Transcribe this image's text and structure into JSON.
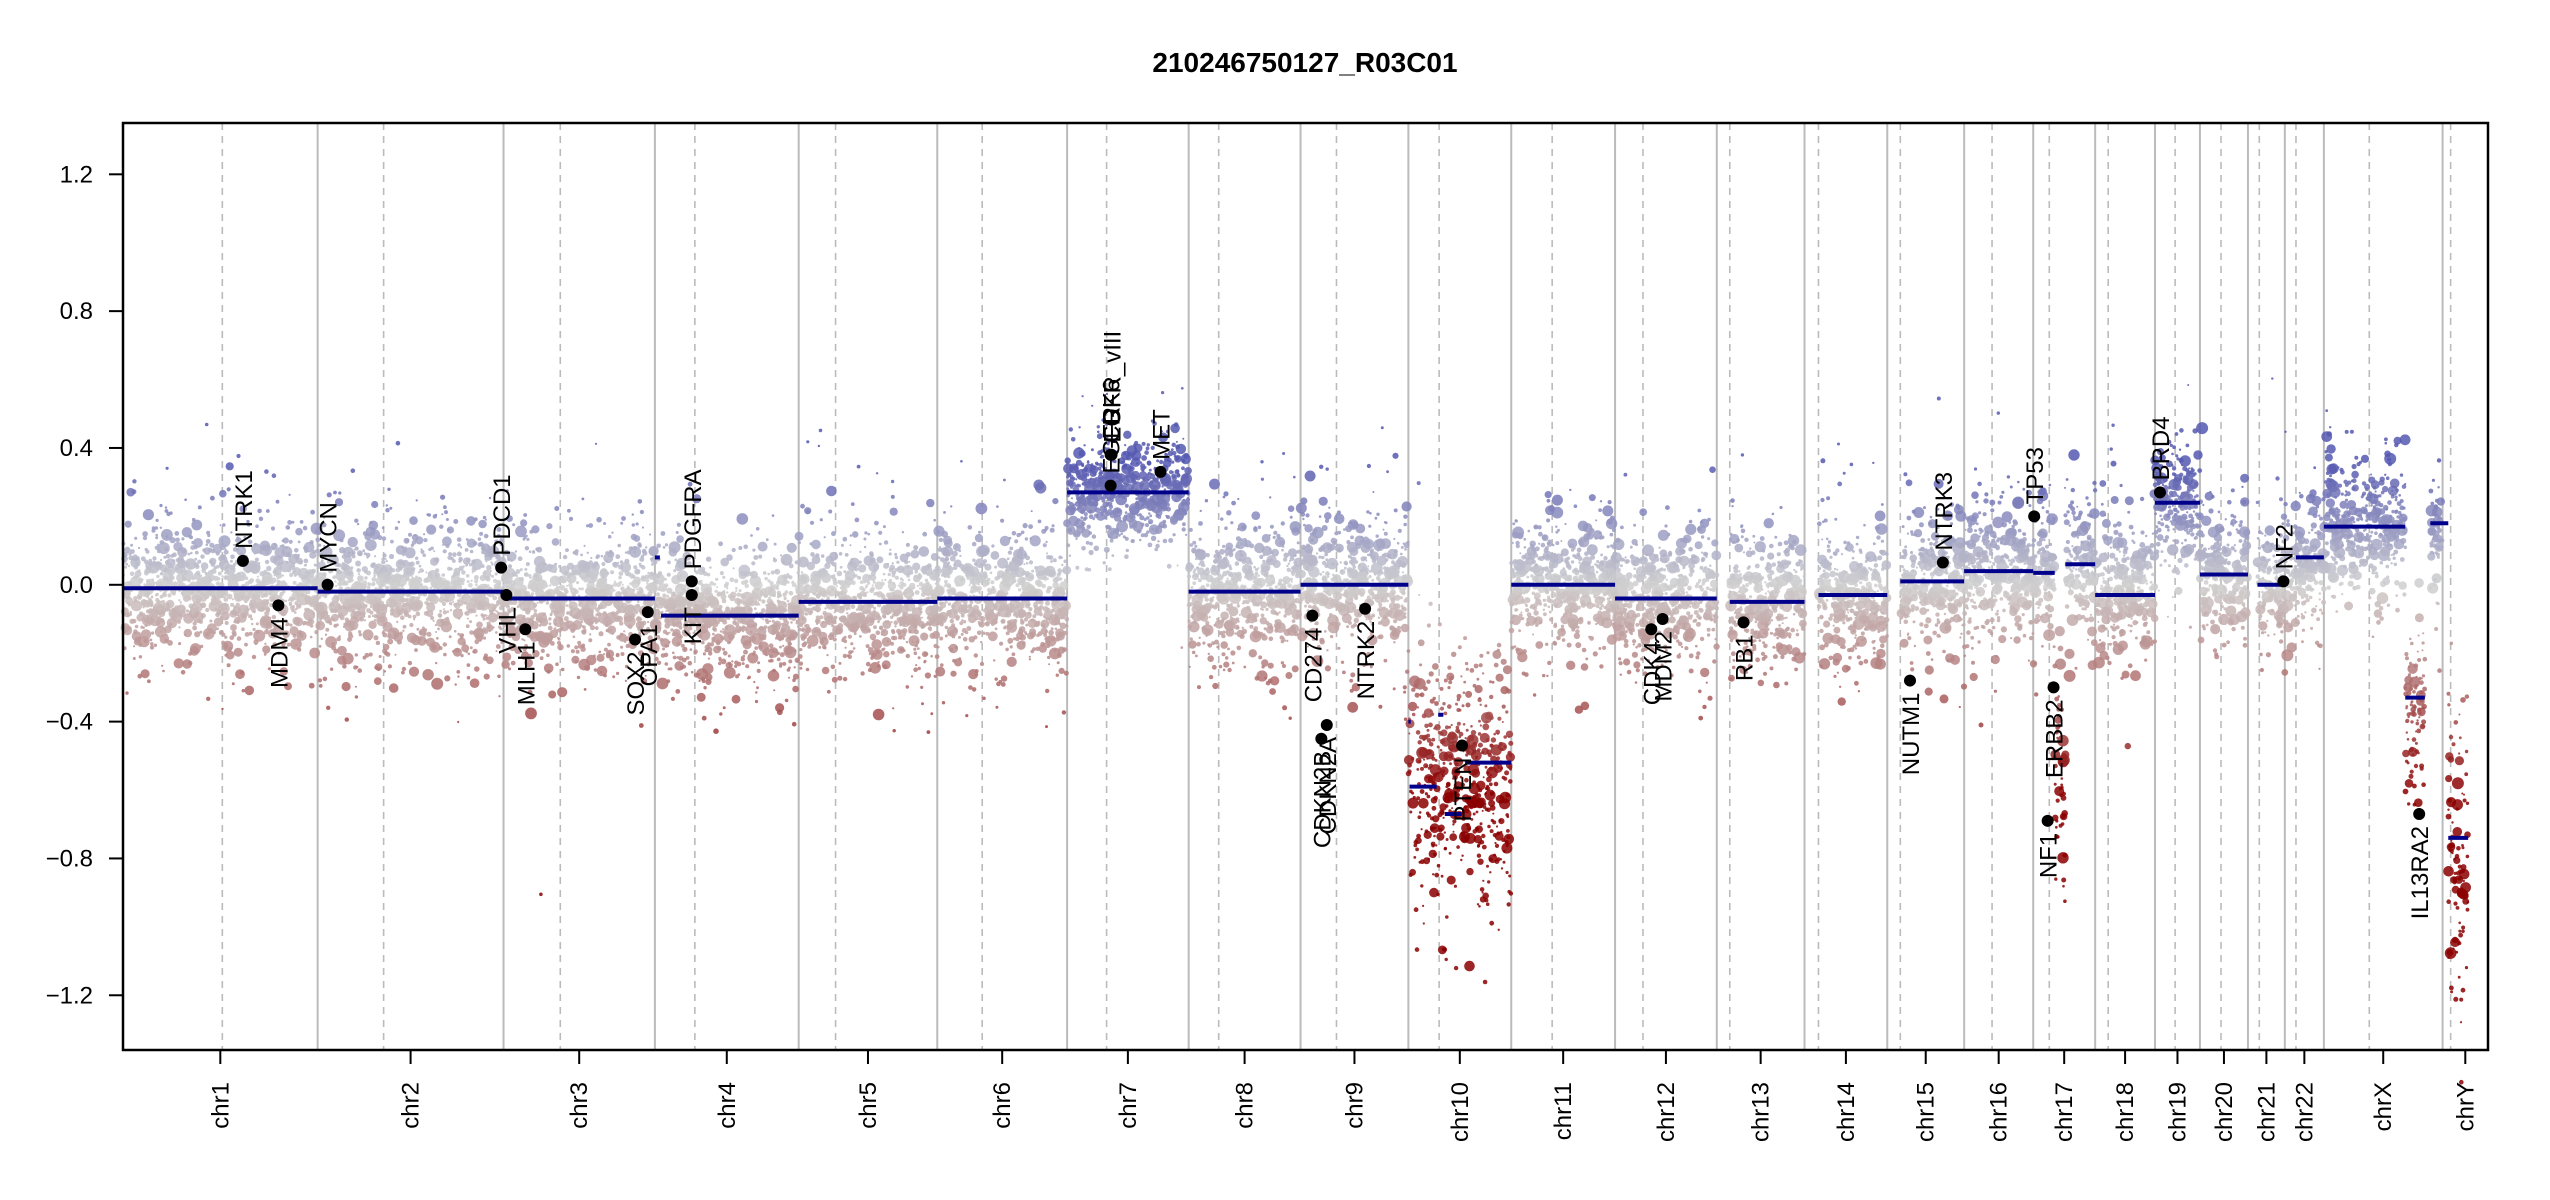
{
  "chart_data": {
    "type": "scatter",
    "title": "210246750127_R03C01",
    "xlabel": "",
    "ylabel": "",
    "ylim": [
      -1.36,
      1.35
    ],
    "y_ticks": [
      1.2,
      0.8,
      0.4,
      0.0,
      -0.4,
      -0.8,
      -1.2
    ],
    "y_tick_labels": [
      "1.2",
      "0.8",
      "0.4",
      "0.0",
      "−0.4",
      "−0.8",
      "−1.2"
    ],
    "grid": false,
    "legend": "none",
    "colors": {
      "gain": "#5558b0",
      "neutral": "#d0d0d0",
      "loss": "#8b0000",
      "segment": "#00008b",
      "gene_point": "#000000",
      "chrom_boundary": "#bbbbbb",
      "centromere": "#bbbbbb"
    },
    "chromosomes": [
      {
        "name": "chr1",
        "start": 0.0,
        "end": 0.0823,
        "centromere": 0.042
      },
      {
        "name": "chr2",
        "start": 0.0823,
        "end": 0.1609,
        "centromere": 0.1102
      },
      {
        "name": "chr3",
        "start": 0.1609,
        "end": 0.2249,
        "centromere": 0.1849
      },
      {
        "name": "chr4",
        "start": 0.2249,
        "end": 0.2857,
        "centromere": 0.2418
      },
      {
        "name": "chr5",
        "start": 0.2857,
        "end": 0.3443,
        "centromere": 0.3013
      },
      {
        "name": "chr6",
        "start": 0.3443,
        "end": 0.3992,
        "centromere": 0.3633
      },
      {
        "name": "chr7",
        "start": 0.3992,
        "end": 0.4506,
        "centromere": 0.4159
      },
      {
        "name": "chr8",
        "start": 0.4506,
        "end": 0.4979,
        "centromere": 0.4633
      },
      {
        "name": "chr9",
        "start": 0.4979,
        "end": 0.5435,
        "centromere": 0.5131
      },
      {
        "name": "chr10",
        "start": 0.5435,
        "end": 0.587,
        "centromere": 0.5565
      },
      {
        "name": "chr11",
        "start": 0.587,
        "end": 0.6309,
        "centromere": 0.6043
      },
      {
        "name": "chr12",
        "start": 0.6309,
        "end": 0.6739,
        "centromere": 0.6427
      },
      {
        "name": "chr13",
        "start": 0.6739,
        "end": 0.711,
        "centromere": 0.6794
      },
      {
        "name": "chr14",
        "start": 0.711,
        "end": 0.746,
        "centromere": 0.7169
      },
      {
        "name": "chr15",
        "start": 0.746,
        "end": 0.7785,
        "centromere": 0.7515
      },
      {
        "name": "chr16",
        "start": 0.7785,
        "end": 0.8077,
        "centromere": 0.7903
      },
      {
        "name": "chr17",
        "start": 0.8077,
        "end": 0.8339,
        "centromere": 0.8145
      },
      {
        "name": "chr18",
        "start": 0.8339,
        "end": 0.8592,
        "centromere": 0.8394
      },
      {
        "name": "chr19",
        "start": 0.8592,
        "end": 0.8782,
        "centromere": 0.8677
      },
      {
        "name": "chr20",
        "start": 0.8782,
        "end": 0.8985,
        "centromere": 0.8871
      },
      {
        "name": "chr21",
        "start": 0.8985,
        "end": 0.9141,
        "centromere": 0.9033
      },
      {
        "name": "chr22",
        "start": 0.9141,
        "end": 0.9306,
        "centromere": 0.9188
      },
      {
        "name": "chrX",
        "start": 0.9306,
        "end": 0.9808,
        "centromere": 0.9498
      },
      {
        "name": "chrY",
        "start": 0.9808,
        "end": 1.0,
        "centromere": 0.9842
      }
    ],
    "segments": [
      {
        "chrom": "chr1",
        "start": 0.0,
        "end": 0.0823,
        "value": -0.01
      },
      {
        "chrom": "chr2",
        "start": 0.0823,
        "end": 0.1609,
        "value": -0.02
      },
      {
        "chrom": "chr3",
        "start": 0.1609,
        "end": 0.2249,
        "value": -0.04
      },
      {
        "chrom": "chr4",
        "start": 0.2249,
        "end": 0.227,
        "value": 0.08
      },
      {
        "chrom": "chr4",
        "start": 0.2275,
        "end": 0.2857,
        "value": -0.09
      },
      {
        "chrom": "chr5",
        "start": 0.2857,
        "end": 0.3443,
        "value": -0.05
      },
      {
        "chrom": "chr6",
        "start": 0.3443,
        "end": 0.3992,
        "value": -0.04
      },
      {
        "chrom": "chr7",
        "start": 0.3992,
        "end": 0.4506,
        "value": 0.27
      },
      {
        "chrom": "chr8",
        "start": 0.4506,
        "end": 0.4979,
        "value": -0.02
      },
      {
        "chrom": "chr9",
        "start": 0.4979,
        "end": 0.5435,
        "value": 0.0
      },
      {
        "chrom": "chr10",
        "start": 0.5435,
        "end": 0.5445,
        "value": -0.4
      },
      {
        "chrom": "chr10",
        "start": 0.544,
        "end": 0.5555,
        "value": -0.59
      },
      {
        "chrom": "chr10",
        "start": 0.5561,
        "end": 0.5583,
        "value": -0.38
      },
      {
        "chrom": "chr10",
        "start": 0.5589,
        "end": 0.5659,
        "value": -0.67
      },
      {
        "chrom": "chr10",
        "start": 0.5675,
        "end": 0.587,
        "value": -0.52
      },
      {
        "chrom": "chr11",
        "start": 0.587,
        "end": 0.6309,
        "value": 0.0
      },
      {
        "chrom": "chr12",
        "start": 0.6309,
        "end": 0.6739,
        "value": -0.04
      },
      {
        "chrom": "chr13",
        "start": 0.6794,
        "end": 0.711,
        "value": -0.05
      },
      {
        "chrom": "chr14",
        "start": 0.7169,
        "end": 0.746,
        "value": -0.03
      },
      {
        "chrom": "chr15",
        "start": 0.7515,
        "end": 0.7785,
        "value": 0.01
      },
      {
        "chrom": "chr16",
        "start": 0.7785,
        "end": 0.8077,
        "value": 0.04
      },
      {
        "chrom": "chr17",
        "start": 0.8077,
        "end": 0.8168,
        "value": 0.035
      },
      {
        "chrom": "chr17",
        "start": 0.8213,
        "end": 0.8339,
        "value": 0.06
      },
      {
        "chrom": "chr18",
        "start": 0.8339,
        "end": 0.8592,
        "value": -0.03
      },
      {
        "chrom": "chr19",
        "start": 0.8592,
        "end": 0.8782,
        "value": 0.24
      },
      {
        "chrom": "chr20",
        "start": 0.8782,
        "end": 0.8985,
        "value": 0.03
      },
      {
        "chrom": "chr21",
        "start": 0.9025,
        "end": 0.9141,
        "value": 0.0
      },
      {
        "chrom": "chr22",
        "start": 0.9188,
        "end": 0.9306,
        "value": 0.08
      },
      {
        "chrom": "chrX",
        "start": 0.9306,
        "end": 0.965,
        "value": 0.17
      },
      {
        "chrom": "chrX",
        "start": 0.965,
        "end": 0.9733,
        "value": -0.33
      },
      {
        "chrom": "chrX",
        "start": 0.9756,
        "end": 0.9832,
        "value": 0.18
      },
      {
        "chrom": "chrY",
        "start": 0.9832,
        "end": 0.9916,
        "value": -0.74
      }
    ],
    "probe_clusters": [
      {
        "chrom": "chr1",
        "start": 0.0,
        "end": 0.0823,
        "mean": -0.01,
        "sd": 0.09
      },
      {
        "chrom": "chr2",
        "start": 0.0823,
        "end": 0.1609,
        "mean": -0.02,
        "sd": 0.09
      },
      {
        "chrom": "chr3",
        "start": 0.1609,
        "end": 0.2249,
        "mean": -0.04,
        "sd": 0.09
      },
      {
        "chrom": "chr4",
        "start": 0.2249,
        "end": 0.2857,
        "mean": -0.08,
        "sd": 0.09
      },
      {
        "chrom": "chr5",
        "start": 0.2857,
        "end": 0.3443,
        "mean": -0.05,
        "sd": 0.09
      },
      {
        "chrom": "chr6",
        "start": 0.3443,
        "end": 0.3992,
        "mean": -0.04,
        "sd": 0.09
      },
      {
        "chrom": "chr7",
        "start": 0.3992,
        "end": 0.4506,
        "mean": 0.27,
        "sd": 0.07
      },
      {
        "chrom": "chr8",
        "start": 0.4506,
        "end": 0.4979,
        "mean": -0.02,
        "sd": 0.09
      },
      {
        "chrom": "chr9",
        "start": 0.4979,
        "end": 0.5435,
        "mean": 0.0,
        "sd": 0.09
      },
      {
        "chrom": "chr10",
        "start": 0.5435,
        "end": 0.587,
        "mean": -0.57,
        "sd": 0.17
      },
      {
        "chrom": "chr11",
        "start": 0.587,
        "end": 0.6309,
        "mean": 0.0,
        "sd": 0.09
      },
      {
        "chrom": "chr12",
        "start": 0.6309,
        "end": 0.6739,
        "mean": -0.04,
        "sd": 0.09
      },
      {
        "chrom": "chr13",
        "start": 0.6794,
        "end": 0.711,
        "mean": -0.05,
        "sd": 0.09
      },
      {
        "chrom": "chr14",
        "start": 0.7169,
        "end": 0.746,
        "mean": -0.03,
        "sd": 0.09
      },
      {
        "chrom": "chr15",
        "start": 0.7515,
        "end": 0.7785,
        "mean": 0.01,
        "sd": 0.09
      },
      {
        "chrom": "chr16",
        "start": 0.7785,
        "end": 0.8077,
        "mean": 0.04,
        "sd": 0.09
      },
      {
        "chrom": "chr17",
        "start": 0.8077,
        "end": 0.8168,
        "mean": 0.03,
        "sd": 0.09
      },
      {
        "chrom": "chr17",
        "start": 0.8168,
        "end": 0.8213,
        "mean": -0.55,
        "sd": 0.15
      },
      {
        "chrom": "chr17",
        "start": 0.8213,
        "end": 0.8339,
        "mean": 0.06,
        "sd": 0.09
      },
      {
        "chrom": "chr18",
        "start": 0.8339,
        "end": 0.8592,
        "mean": -0.03,
        "sd": 0.09
      },
      {
        "chrom": "chr19",
        "start": 0.8592,
        "end": 0.8782,
        "mean": 0.24,
        "sd": 0.08
      },
      {
        "chrom": "chr20",
        "start": 0.8782,
        "end": 0.8985,
        "mean": 0.03,
        "sd": 0.09
      },
      {
        "chrom": "chr21",
        "start": 0.9025,
        "end": 0.9141,
        "mean": 0.0,
        "sd": 0.09
      },
      {
        "chrom": "chr22",
        "start": 0.9141,
        "end": 0.9306,
        "mean": 0.05,
        "sd": 0.09
      },
      {
        "chrom": "chrX",
        "start": 0.9306,
        "end": 0.965,
        "mean": 0.17,
        "sd": 0.09
      },
      {
        "chrom": "chrX",
        "start": 0.965,
        "end": 0.9733,
        "mean": -0.36,
        "sd": 0.09
      },
      {
        "chrom": "chrX",
        "start": 0.9756,
        "end": 0.9808,
        "mean": 0.15,
        "sd": 0.09
      },
      {
        "chrom": "chrY",
        "start": 0.9832,
        "end": 0.9916,
        "mean": -0.8,
        "sd": 0.2
      }
    ],
    "genes": [
      {
        "name": "NTRK1",
        "pos": 0.0507,
        "value": 0.07,
        "label_side": "above"
      },
      {
        "name": "MDM4",
        "pos": 0.0657,
        "value": -0.06,
        "label_side": "below"
      },
      {
        "name": "MYCN",
        "pos": 0.0865,
        "value": 0.0,
        "label_side": "above"
      },
      {
        "name": "PDCD1",
        "pos": 0.1599,
        "value": 0.05,
        "label_side": "above"
      },
      {
        "name": "VHL",
        "pos": 0.1621,
        "value": -0.03,
        "label_side": "below"
      },
      {
        "name": "MLH1",
        "pos": 0.1701,
        "value": -0.13,
        "label_side": "below"
      },
      {
        "name": "SOX2",
        "pos": 0.2165,
        "value": -0.16,
        "label_side": "below"
      },
      {
        "name": "OPA1",
        "pos": 0.2219,
        "value": -0.08,
        "label_side": "below"
      },
      {
        "name": "PDGFRA",
        "pos": 0.2405,
        "value": 0.01,
        "label_side": "above"
      },
      {
        "name": "KIT",
        "pos": 0.2405,
        "value": -0.03,
        "label_side": "below"
      },
      {
        "name": "CDK6",
        "pos": 0.4176,
        "value": 0.38,
        "label_side": "above"
      },
      {
        "name": "EGFR",
        "pos": 0.4176,
        "value": 0.29,
        "label_side": "above"
      },
      {
        "name": "EGFR_vIII",
        "pos": 0.418,
        "value": 0.38,
        "label_side": "above"
      },
      {
        "name": "MET",
        "pos": 0.4387,
        "value": 0.33,
        "label_side": "above"
      },
      {
        "name": "CD274",
        "pos": 0.5029,
        "value": -0.09,
        "label_side": "below"
      },
      {
        "name": "CDKN2A",
        "pos": 0.509,
        "value": -0.41,
        "label_side": "below"
      },
      {
        "name": "CDKN2B",
        "pos": 0.5067,
        "value": -0.45,
        "label_side": "below"
      },
      {
        "name": "NTRK2",
        "pos": 0.5252,
        "value": -0.07,
        "label_side": "below"
      },
      {
        "name": "PTEN",
        "pos": 0.5662,
        "value": -0.47,
        "label_side": "below"
      },
      {
        "name": "CDK4",
        "pos": 0.6462,
        "value": -0.13,
        "label_side": "below"
      },
      {
        "name": "MDM2",
        "pos": 0.651,
        "value": -0.1,
        "label_side": "below"
      },
      {
        "name": "RB1",
        "pos": 0.6852,
        "value": -0.11,
        "label_side": "below"
      },
      {
        "name": "NUTM1",
        "pos": 0.7556,
        "value": -0.28,
        "label_side": "below"
      },
      {
        "name": "NTRK3",
        "pos": 0.7695,
        "value": 0.065,
        "label_side": "above"
      },
      {
        "name": "ERBB2",
        "pos": 0.8163,
        "value": -0.3,
        "label_side": "below"
      },
      {
        "name": "NF1",
        "pos": 0.8138,
        "value": -0.69,
        "label_side": "below"
      },
      {
        "name": "TP53",
        "pos": 0.8081,
        "value": 0.2,
        "label_side": "above"
      },
      {
        "name": "BRD4",
        "pos": 0.8613,
        "value": 0.27,
        "label_side": "above"
      },
      {
        "name": "NF2",
        "pos": 0.9135,
        "value": 0.01,
        "label_side": "above"
      },
      {
        "name": "IL13RA2",
        "pos": 0.9709,
        "value": -0.67,
        "label_side": "below"
      }
    ]
  }
}
